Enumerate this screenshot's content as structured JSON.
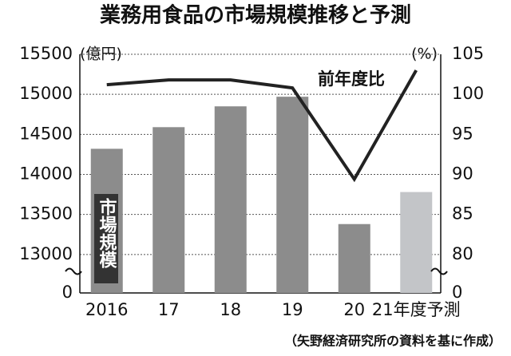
{
  "chart_data": {
    "type": "bar_line",
    "title": "業務用食品の市場規模推移と予測",
    "y_label": "(億円)",
    "y2_label": "(%)",
    "source": "（矢野経済研究所の資料を基に作成）",
    "categories": [
      "2016",
      "17",
      "18",
      "19",
      "20",
      "21年度予測"
    ],
    "series": [
      {
        "name": "市場規模",
        "type": "bar",
        "colors": [
          "#8c8c8c",
          "#8c8c8c",
          "#8c8c8c",
          "#8c8c8c",
          "#8c8c8c",
          "#c3c5c8"
        ],
        "values": [
          14320,
          14590,
          14850,
          14970,
          13380,
          13780
        ]
      },
      {
        "name": "前年度比",
        "type": "line",
        "axis": "y2",
        "color": "#222222",
        "values": [
          101.2,
          101.8,
          101.8,
          100.8,
          89.4,
          103.0
        ]
      }
    ],
    "ylim": [
      0,
      15500
    ],
    "yticks": [
      0,
      13000,
      13500,
      14000,
      14500,
      15000,
      15500
    ],
    "ybreak": [
      0,
      12520
    ],
    "y2lim": [
      0,
      105
    ],
    "y2ticks": [
      0,
      80,
      85,
      90,
      95,
      100,
      105
    ],
    "y2break": [
      0,
      75.2
    ],
    "grid": true
  }
}
